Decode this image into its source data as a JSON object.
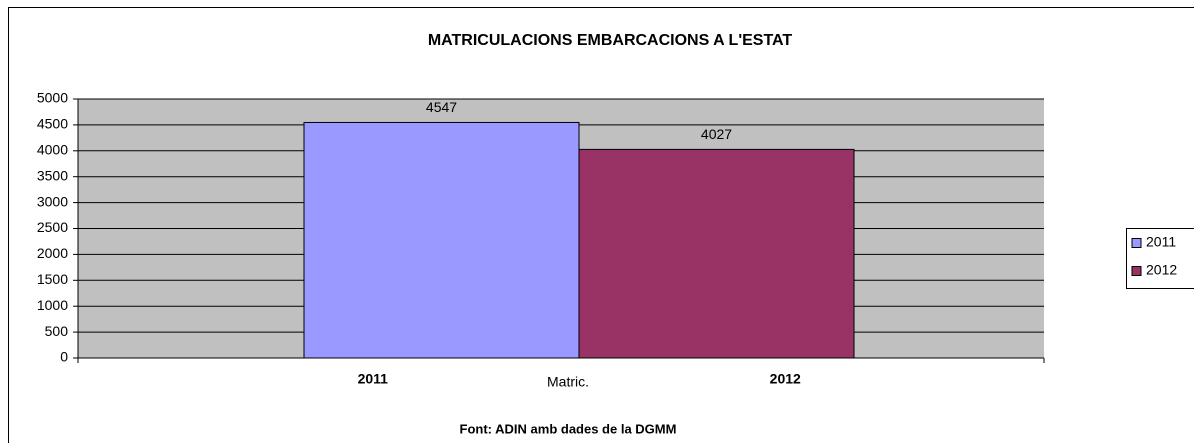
{
  "chart_data": {
    "type": "bar",
    "title": "MATRICULACIONS EMBARCACIONS A L'ESTAT",
    "categories": [
      "Matric."
    ],
    "series": [
      {
        "name": "2011",
        "color": "#9999ff",
        "values": [
          4547
        ]
      },
      {
        "name": "2012",
        "color": "#993366",
        "values": [
          4027
        ]
      }
    ],
    "ylim": [
      0,
      5000
    ],
    "yticks": [
      0,
      500,
      1000,
      1500,
      2000,
      2500,
      3000,
      3500,
      4000,
      4500,
      5000
    ],
    "grid": true,
    "legend": "right",
    "footnote": "Font: ADIN amb dades de la DGMM"
  }
}
